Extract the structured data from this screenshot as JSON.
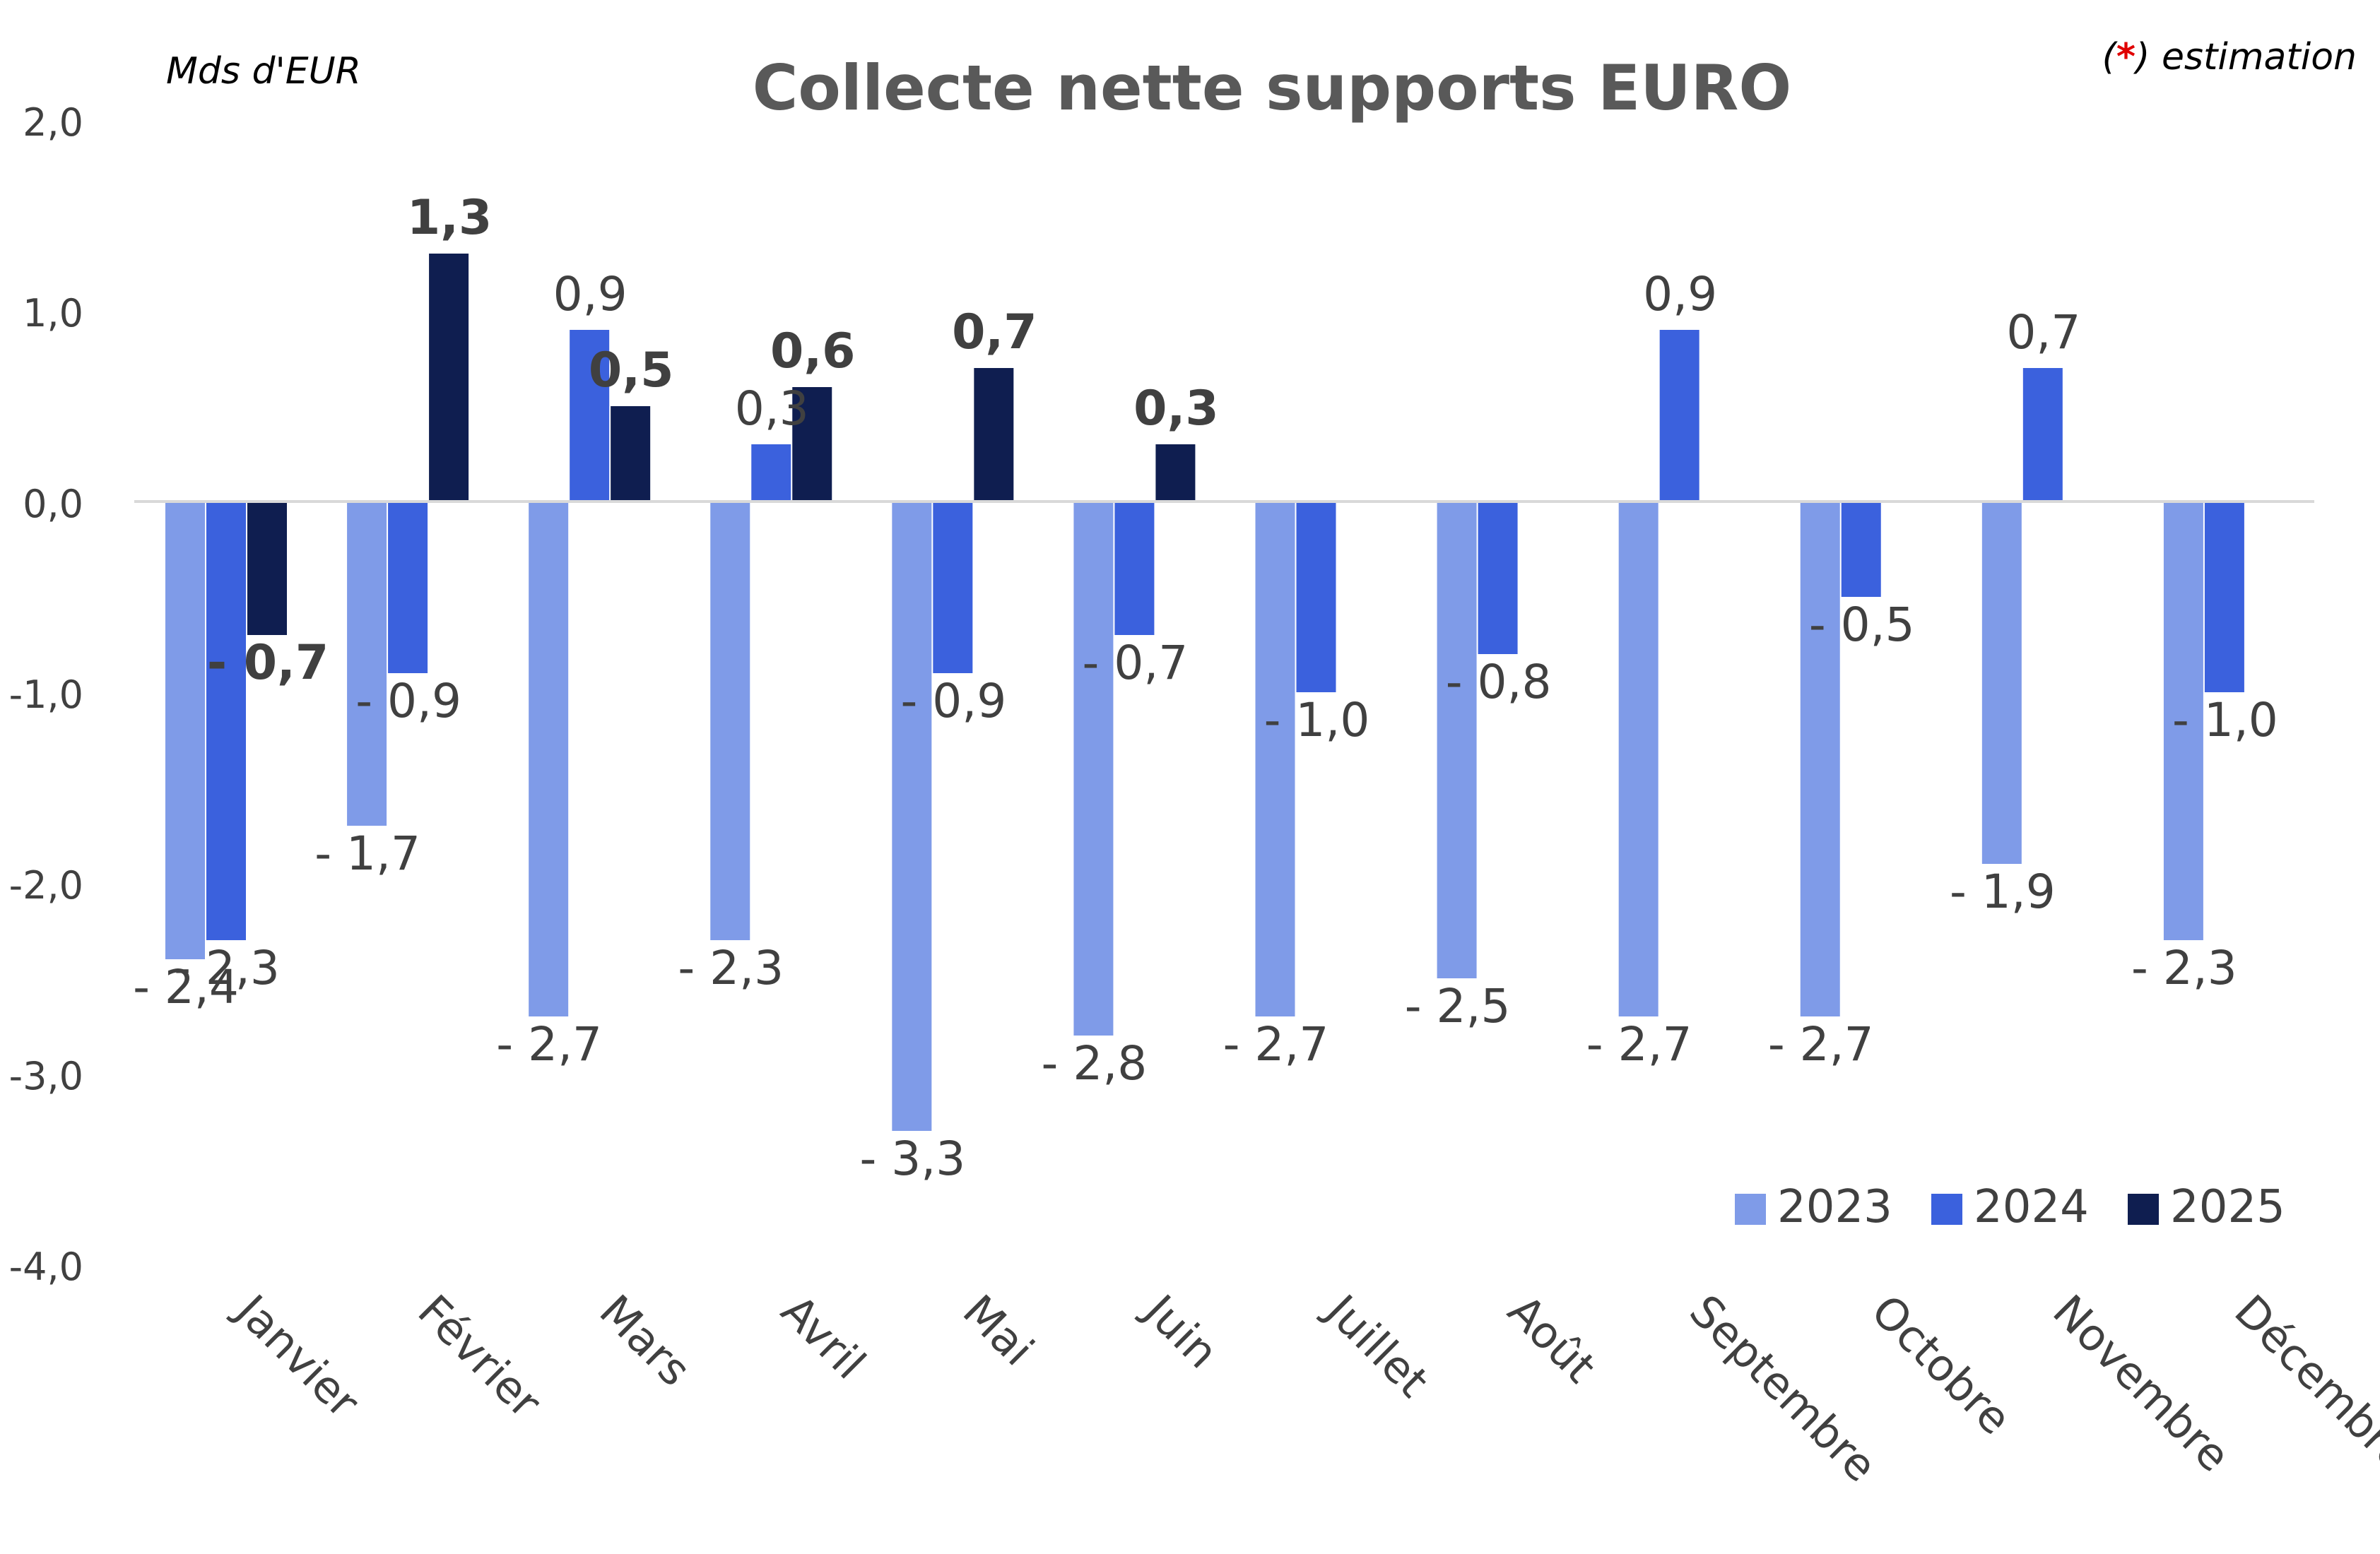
{
  "chart_data": {
    "type": "bar",
    "title": "Collecte nette supports EURO",
    "unit_label": "Mds d'EUR",
    "note": {
      "mark": "*",
      "mark_color": "#e00000",
      "text_before": "(",
      "text_after": ") estimation"
    },
    "categories": [
      "Janvier",
      "Février",
      "Mars",
      "Avril",
      "Mai",
      "Juin",
      "Juillet",
      "Août",
      "Septembre",
      "Octobre",
      "Novembre",
      "Décembre"
    ],
    "series": [
      {
        "name": "2023",
        "color": "#7f9be8",
        "values": [
          -2.4,
          -1.7,
          -2.7,
          -2.3,
          -3.3,
          -2.8,
          -2.7,
          -2.5,
          -2.7,
          -2.7,
          -1.9,
          -2.3
        ],
        "labels": [
          "- 2,4",
          "- 1,7",
          "- 2,7",
          "- 2,3",
          "- 3,3",
          "- 2,8",
          "- 2,7",
          "- 2,5",
          "- 2,7",
          "- 2,7",
          "- 1,9",
          "- 2,3"
        ]
      },
      {
        "name": "2024",
        "color": "#3b61dd",
        "values": [
          -2.3,
          -0.9,
          0.9,
          0.3,
          -0.9,
          -0.7,
          -1.0,
          -0.8,
          0.9,
          -0.5,
          0.7,
          -1.0
        ],
        "labels": [
          "- 2,3",
          "- 0,9",
          "0,9",
          "0,3",
          "- 0,9",
          "- 0,7",
          "- 1,0",
          "- 0,8",
          "0,9",
          "- 0,5",
          "0,7",
          "- 1,0"
        ]
      },
      {
        "name": "2025",
        "color": "#0f1e50",
        "values": [
          -0.7,
          1.3,
          0.5,
          0.6,
          0.7,
          0.3,
          null,
          null,
          null,
          null,
          null,
          null
        ],
        "labels": [
          "- 0,7",
          "1,3",
          "0,5",
          "0,6",
          "0,7",
          "0,3",
          "",
          "",
          "",
          "",
          "",
          ""
        ]
      }
    ],
    "ylim": [
      -4.0,
      2.0
    ],
    "yticks": [
      2.0,
      1.0,
      0.0,
      -1.0,
      -2.0,
      -3.0,
      -4.0
    ],
    "ytick_labels": [
      "2,0",
      "1,0",
      "0,0",
      "-1,0",
      "-2,0",
      "-3,0",
      "-4,0"
    ],
    "grid": false,
    "legend_position": "bottom-right"
  }
}
